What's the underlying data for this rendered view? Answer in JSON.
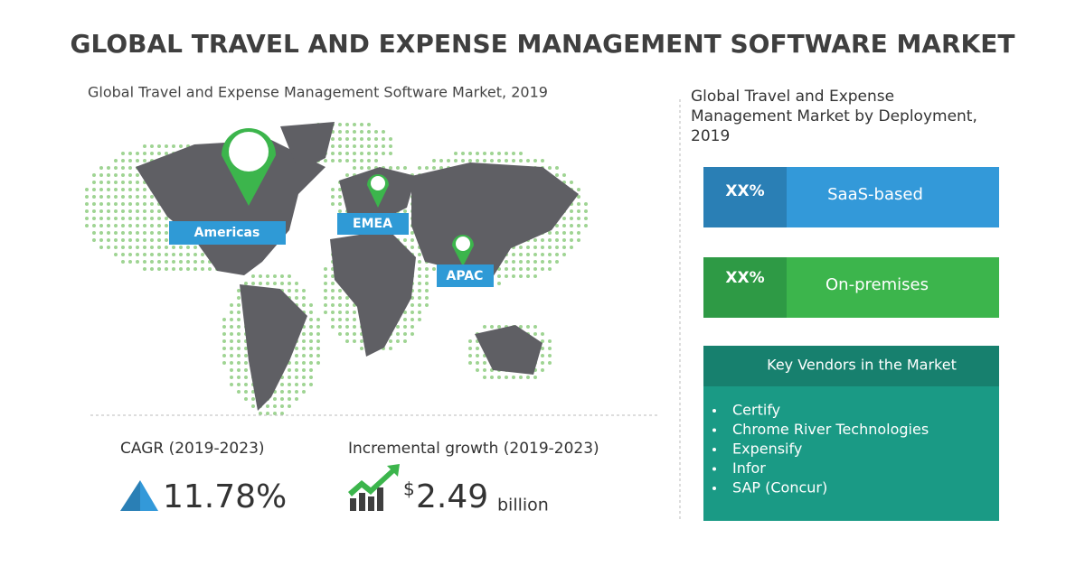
{
  "title": "GLOBAL TRAVEL AND EXPENSE MANAGEMENT SOFTWARE MARKET",
  "map": {
    "subtitle": "Global Travel and Expense Management Software Market, 2019",
    "regions": [
      "Americas",
      "EMEA",
      "APAC"
    ]
  },
  "stats": {
    "cagr_label": "CAGR (2019-2023)",
    "cagr_value": "11.78%",
    "growth_label": "Incremental growth (2019-2023)",
    "growth_currency": "$",
    "growth_value": "2.49",
    "growth_unit": "billion"
  },
  "deployment": {
    "title": "Global Travel and Expense Management Market by Deployment, 2019",
    "items": [
      {
        "share": "XX%",
        "label": "SaaS-based"
      },
      {
        "share": "XX%",
        "label": "On-premises"
      }
    ]
  },
  "vendors": {
    "title": "Key Vendors in the Market",
    "list": [
      "Certify",
      "Chrome River Technologies",
      "Expensify",
      "Infor",
      "SAP (Concur)"
    ]
  }
}
